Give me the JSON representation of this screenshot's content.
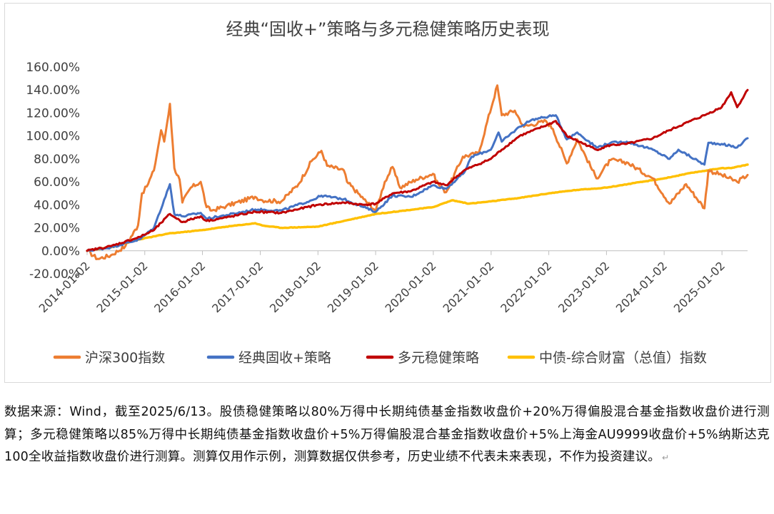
{
  "chart_data": {
    "type": "line",
    "title": "经典“固收+”策略与多元稳健策略历史表现",
    "y_ticks": [
      "160.00%",
      "140.00%",
      "120.00%",
      "100.00%",
      "80.00%",
      "60.00%",
      "40.00%",
      "20.00%",
      "0.00%",
      "-20.00%"
    ],
    "x_ticks": [
      "2014-01-02",
      "2015-01-02",
      "2016-01-02",
      "2017-01-02",
      "2018-01-02",
      "2019-01-02",
      "2020-01-02",
      "2021-01-02",
      "2022-01-02",
      "2023-01-02",
      "2024-01-02",
      "2025-01-02"
    ],
    "x_range": [
      "2014-01-02",
      "2025-06-13"
    ],
    "ylim": [
      -20,
      160
    ],
    "y_unit": "%",
    "grid": false,
    "legend_position": "bottom",
    "series": [
      {
        "name": "沪深300指数",
        "color": "#ED7D31",
        "points": [
          [
            "2014-01-02",
            0
          ],
          [
            "2014-03-10",
            -7
          ],
          [
            "2014-06-01",
            -4
          ],
          [
            "2014-09-01",
            4
          ],
          [
            "2014-11-20",
            22
          ],
          [
            "2014-12-15",
            50
          ],
          [
            "2015-01-15",
            56
          ],
          [
            "2015-03-01",
            70
          ],
          [
            "2015-04-15",
            105
          ],
          [
            "2015-05-05",
            95
          ],
          [
            "2015-06-10",
            128
          ],
          [
            "2015-07-08",
            72
          ],
          [
            "2015-08-10",
            62
          ],
          [
            "2015-08-28",
            42
          ],
          [
            "2015-10-20",
            55
          ],
          [
            "2015-12-22",
            60
          ],
          [
            "2016-01-28",
            38
          ],
          [
            "2016-03-01",
            35
          ],
          [
            "2016-06-01",
            39
          ],
          [
            "2016-11-30",
            47
          ],
          [
            "2017-01-15",
            44
          ],
          [
            "2017-05-15",
            43
          ],
          [
            "2017-09-01",
            58
          ],
          [
            "2017-11-22",
            78
          ],
          [
            "2018-01-24",
            87
          ],
          [
            "2018-03-01",
            74
          ],
          [
            "2018-06-15",
            70
          ],
          [
            "2018-07-05",
            60
          ],
          [
            "2018-10-18",
            45
          ],
          [
            "2019-01-03",
            35
          ],
          [
            "2019-03-01",
            60
          ],
          [
            "2019-04-19",
            73
          ],
          [
            "2019-06-05",
            55
          ],
          [
            "2019-09-15",
            62
          ],
          [
            "2019-12-31",
            67
          ],
          [
            "2020-02-03",
            58
          ],
          [
            "2020-03-23",
            51
          ],
          [
            "2020-07-07",
            82
          ],
          [
            "2020-10-15",
            85
          ],
          [
            "2021-02-10",
            144
          ],
          [
            "2021-03-10",
            118
          ],
          [
            "2021-06-01",
            122
          ],
          [
            "2021-07-28",
            108
          ],
          [
            "2021-12-15",
            113
          ],
          [
            "2022-01-28",
            106
          ],
          [
            "2022-04-26",
            76
          ],
          [
            "2022-07-01",
            97
          ],
          [
            "2022-10-31",
            63
          ],
          [
            "2023-01-28",
            79
          ],
          [
            "2023-05-10",
            77
          ],
          [
            "2023-10-23",
            63
          ],
          [
            "2024-02-05",
            41
          ],
          [
            "2024-05-20",
            58
          ],
          [
            "2024-09-13",
            37
          ],
          [
            "2024-10-08",
            70
          ],
          [
            "2024-12-31",
            66
          ],
          [
            "2025-04-08",
            60
          ],
          [
            "2025-06-13",
            66
          ]
        ]
      },
      {
        "name": "经典固收+策略",
        "color": "#4472C4",
        "points": [
          [
            "2014-01-02",
            0
          ],
          [
            "2014-06-01",
            3
          ],
          [
            "2014-12-01",
            10
          ],
          [
            "2015-03-01",
            20
          ],
          [
            "2015-06-10",
            58
          ],
          [
            "2015-07-08",
            32
          ],
          [
            "2015-09-01",
            30
          ],
          [
            "2015-12-22",
            33
          ],
          [
            "2016-01-28",
            28
          ],
          [
            "2016-06-01",
            31
          ],
          [
            "2016-12-01",
            36
          ],
          [
            "2017-05-15",
            35
          ],
          [
            "2017-11-22",
            44
          ],
          [
            "2018-01-24",
            48
          ],
          [
            "2018-06-15",
            45
          ],
          [
            "2018-10-18",
            38
          ],
          [
            "2019-01-03",
            34
          ],
          [
            "2019-04-19",
            48
          ],
          [
            "2019-08-15",
            47
          ],
          [
            "2019-12-31",
            57
          ],
          [
            "2020-03-23",
            54
          ],
          [
            "2020-07-15",
            68
          ],
          [
            "2020-09-01",
            82
          ],
          [
            "2020-12-31",
            88
          ],
          [
            "2021-02-18",
            103
          ],
          [
            "2021-03-10",
            95
          ],
          [
            "2021-07-01",
            108
          ],
          [
            "2021-09-15",
            114
          ],
          [
            "2021-12-31",
            117
          ],
          [
            "2022-02-15",
            118
          ],
          [
            "2022-04-26",
            97
          ],
          [
            "2022-07-01",
            103
          ],
          [
            "2022-10-31",
            90
          ],
          [
            "2023-01-28",
            94
          ],
          [
            "2023-05-10",
            95
          ],
          [
            "2023-10-23",
            88
          ],
          [
            "2024-02-05",
            80
          ],
          [
            "2024-04-01",
            88
          ],
          [
            "2024-09-13",
            75
          ],
          [
            "2024-10-08",
            94
          ],
          [
            "2024-12-31",
            93
          ],
          [
            "2025-04-08",
            90
          ],
          [
            "2025-06-13",
            98
          ]
        ]
      },
      {
        "name": "多元稳健策略",
        "color": "#C00000",
        "points": [
          [
            "2014-01-02",
            0
          ],
          [
            "2014-06-01",
            4
          ],
          [
            "2014-12-01",
            12
          ],
          [
            "2015-03-01",
            18
          ],
          [
            "2015-06-10",
            32
          ],
          [
            "2015-08-28",
            25
          ],
          [
            "2015-12-22",
            30
          ],
          [
            "2016-01-28",
            26
          ],
          [
            "2016-06-01",
            29
          ],
          [
            "2016-12-01",
            34
          ],
          [
            "2017-05-15",
            33
          ],
          [
            "2017-12-31",
            40
          ],
          [
            "2018-06-15",
            42
          ],
          [
            "2018-10-18",
            40
          ],
          [
            "2019-01-03",
            41
          ],
          [
            "2019-04-19",
            50
          ],
          [
            "2019-08-15",
            52
          ],
          [
            "2019-12-31",
            60
          ],
          [
            "2020-03-23",
            57
          ],
          [
            "2020-07-15",
            70
          ],
          [
            "2020-12-31",
            80
          ],
          [
            "2021-03-10",
            88
          ],
          [
            "2021-07-01",
            100
          ],
          [
            "2021-12-31",
            110
          ],
          [
            "2022-02-15",
            113
          ],
          [
            "2022-04-26",
            100
          ],
          [
            "2022-10-31",
            88
          ],
          [
            "2023-01-28",
            92
          ],
          [
            "2023-05-10",
            93
          ],
          [
            "2023-10-23",
            98
          ],
          [
            "2024-02-05",
            105
          ],
          [
            "2024-06-01",
            112
          ],
          [
            "2024-09-13",
            118
          ],
          [
            "2024-12-31",
            125
          ],
          [
            "2025-03-01",
            138
          ],
          [
            "2025-04-08",
            125
          ],
          [
            "2025-06-13",
            140
          ]
        ]
      },
      {
        "name": "中债-综合财富（总值）指数",
        "color": "#FFC000",
        "points": [
          [
            "2014-01-02",
            0
          ],
          [
            "2014-06-01",
            3
          ],
          [
            "2014-12-01",
            10
          ],
          [
            "2015-06-01",
            15
          ],
          [
            "2015-12-31",
            18
          ],
          [
            "2016-06-01",
            21
          ],
          [
            "2016-12-01",
            24
          ],
          [
            "2017-01-15",
            22
          ],
          [
            "2017-05-15",
            20
          ],
          [
            "2017-12-31",
            21
          ],
          [
            "2018-06-15",
            26
          ],
          [
            "2018-12-31",
            32
          ],
          [
            "2019-06-30",
            35
          ],
          [
            "2019-12-31",
            38
          ],
          [
            "2020-05-01",
            44
          ],
          [
            "2020-08-15",
            41
          ],
          [
            "2020-12-31",
            43
          ],
          [
            "2021-06-30",
            46
          ],
          [
            "2021-12-31",
            50
          ],
          [
            "2022-06-30",
            53
          ],
          [
            "2022-12-31",
            55
          ],
          [
            "2023-06-30",
            59
          ],
          [
            "2023-12-31",
            63
          ],
          [
            "2024-06-30",
            68
          ],
          [
            "2024-12-31",
            72
          ],
          [
            "2025-03-01",
            72
          ],
          [
            "2025-06-13",
            75
          ]
        ]
      }
    ],
    "legend": [
      "沪深300指数",
      "经典固收+策略",
      "多元稳健策略",
      "中债-综合财富（总值）指数"
    ]
  },
  "note": {
    "text": "数据来源：Wind，截至2025/6/13。股债稳健策略以80%万得中长期纯债基金指数收盘价+20%万得偏股混合基金指数收盘价进行测算；多元稳健策略以85%万得中长期纯债基金指数收盘价+5%万得偏股混合基金指数收盘价+5%上海金AU9999收盘价+5%纳斯达克100全收益指数收盘价进行测算。测算仅用作示例，测算数据仅供参考，历史业绩不代表未来表现，不作为投资建议。",
    "return_mark": "↵"
  }
}
